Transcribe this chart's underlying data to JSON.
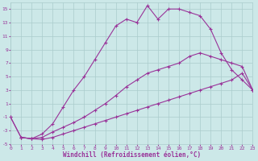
{
  "xlabel": "Windchill (Refroidissement éolien,°C)",
  "bg_color": "#cce8e8",
  "grid_color": "#aacccc",
  "line_color": "#993399",
  "xlim": [
    0,
    23
  ],
  "ylim": [
    -5,
    16
  ],
  "xticks": [
    0,
    1,
    2,
    3,
    4,
    5,
    6,
    7,
    8,
    9,
    10,
    11,
    12,
    13,
    14,
    15,
    16,
    17,
    18,
    19,
    20,
    21,
    22,
    23
  ],
  "yticks": [
    -5,
    -3,
    -1,
    1,
    3,
    5,
    7,
    9,
    11,
    13,
    15
  ],
  "line1_x": [
    0,
    1,
    2,
    3,
    4,
    5,
    6,
    7,
    8,
    9,
    10,
    11,
    12,
    13,
    14,
    15,
    16,
    17,
    18,
    19,
    20,
    21,
    22,
    23
  ],
  "line1_y": [
    -1,
    -4,
    -4.2,
    -4.3,
    -4.0,
    -3.5,
    -3.0,
    -2.5,
    -2.0,
    -1.5,
    -1.0,
    -0.5,
    0.0,
    0.5,
    1.0,
    1.5,
    2.0,
    2.5,
    3.0,
    3.5,
    4.0,
    4.5,
    5.5,
    3.0
  ],
  "line2_x": [
    0,
    1,
    2,
    3,
    4,
    5,
    6,
    7,
    8,
    9,
    10,
    11,
    12,
    13,
    14,
    15,
    16,
    17,
    18,
    19,
    20,
    21,
    22,
    23
  ],
  "line2_y": [
    -1,
    -4,
    -4.2,
    -4.0,
    -3.2,
    -2.5,
    -1.8,
    -1.0,
    0.0,
    1.0,
    2.2,
    3.5,
    4.5,
    5.5,
    6.0,
    6.5,
    7.0,
    8.0,
    8.5,
    8.0,
    7.5,
    7.0,
    6.5,
    3.0
  ],
  "line3_x": [
    1,
    2,
    3,
    4,
    5,
    6,
    7,
    8,
    9,
    10,
    11,
    12,
    13,
    14,
    15,
    16,
    17,
    18,
    19,
    20,
    21,
    22,
    23
  ],
  "line3_y": [
    -4,
    -4.2,
    -3.5,
    -2.0,
    0.5,
    3.0,
    5.0,
    7.5,
    10.0,
    12.5,
    13.5,
    13.0,
    15.5,
    13.5,
    15.0,
    15.0,
    14.5,
    14.0,
    12.0,
    8.5,
    6.0,
    4.5,
    3.0
  ]
}
